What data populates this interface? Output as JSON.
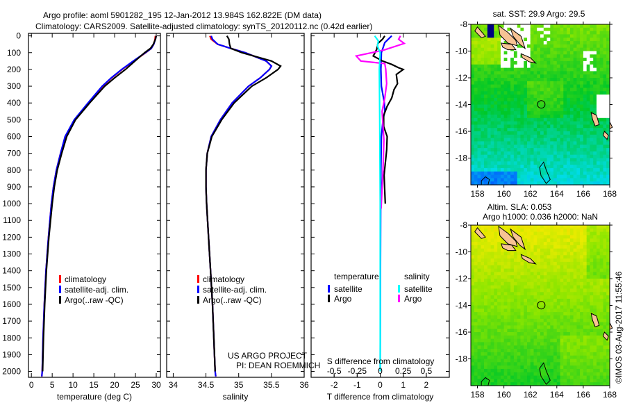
{
  "header": {
    "title_line1": "Argo profile: aoml 5901282_195 12-Jan-2012 13.984S 162.822E (DM data)",
    "title_line2": "Climatology: CARS2009. Satellite-adjusted climatology: synTS_20120112.nc (0.42d earlier)"
  },
  "footer": {
    "project": "US ARGO PROJECT",
    "pi": "PI: DEAN ROEMMICH",
    "copyright": "©IMOS 03-Aug-2017 11:55:46"
  },
  "colors": {
    "climatology": "#ff0000",
    "satellite": "#0000ff",
    "argo": "#000000",
    "sal_satellite": "#00ffff",
    "sal_argo": "#ff00ff",
    "land": "#f7c394"
  },
  "depth_axis": {
    "ticks": [
      0,
      100,
      200,
      300,
      400,
      500,
      600,
      700,
      800,
      900,
      1000,
      1100,
      1200,
      1300,
      1400,
      1500,
      1600,
      1700,
      1800,
      1900,
      2000
    ],
    "ylim": [
      -15,
      2035
    ]
  },
  "chart_data": [
    {
      "type": "line",
      "name": "temperature",
      "xlabel": "temperature (deg C)",
      "xticks": [
        0,
        5,
        10,
        15,
        20,
        25,
        30
      ],
      "xlim": [
        -0.7,
        31
      ],
      "depth": [
        0,
        20,
        50,
        75,
        100,
        150,
        200,
        250,
        300,
        400,
        500,
        600,
        700,
        800,
        900,
        1000,
        1200,
        1400,
        1600,
        1800,
        2000,
        2030
      ],
      "series": [
        {
          "name": "climatology",
          "color": "#ff0000",
          "values": [
            29.8,
            29.7,
            29.4,
            28.8,
            27.5,
            24.6,
            21.8,
            19.3,
            17.1,
            13.7,
            10.4,
            8.2,
            7.0,
            6.0,
            5.3,
            4.8,
            4.1,
            3.5,
            3.1,
            2.8,
            2.6,
            2.5
          ]
        },
        {
          "name": "satellite-adj. clim.",
          "color": "#0000ff",
          "values": [
            30.0,
            29.8,
            29.4,
            28.8,
            27.4,
            24.5,
            21.7,
            19.2,
            17.0,
            13.6,
            10.3,
            8.1,
            7.0,
            6.0,
            5.3,
            4.8,
            4.1,
            3.5,
            3.1,
            2.8,
            2.6,
            2.5
          ]
        },
        {
          "name": "Argo(..raw -QC)",
          "color": "#000000",
          "values": [
            30.0,
            29.8,
            29.3,
            28.6,
            27.2,
            24.9,
            22.6,
            20.0,
            17.6,
            14.0,
            10.6,
            8.5,
            7.3,
            6.2,
            5.5,
            5.0,
            4.2,
            3.6,
            3.2,
            2.9,
            2.7,
            null
          ]
        }
      ],
      "legend": [
        "climatology",
        "satellite-adj. clim.",
        "Argo(..raw -QC)"
      ]
    },
    {
      "type": "line",
      "name": "salinity",
      "xlabel": "salinity",
      "xticks": [
        34,
        34.5,
        35,
        35.5,
        36
      ],
      "xlim": [
        33.9,
        36.0
      ],
      "depth": [
        0,
        20,
        50,
        75,
        100,
        150,
        180,
        200,
        250,
        300,
        400,
        500,
        600,
        700,
        800,
        900,
        1000,
        1200,
        1400,
        1600,
        1800,
        2000,
        2030
      ],
      "series": [
        {
          "name": "climatology",
          "color": "#ff0000",
          "values": [
            34.56,
            34.58,
            34.68,
            34.88,
            35.1,
            35.42,
            35.5,
            35.47,
            35.33,
            35.15,
            34.9,
            34.72,
            34.58,
            34.52,
            34.5,
            34.5,
            34.51,
            34.54,
            34.57,
            34.6,
            34.62,
            34.64,
            34.65
          ]
        },
        {
          "name": "satellite-adj. clim.",
          "color": "#0000ff",
          "values": [
            34.58,
            34.6,
            34.68,
            34.88,
            35.1,
            35.42,
            35.5,
            35.47,
            35.33,
            35.15,
            34.9,
            34.72,
            34.58,
            34.52,
            34.5,
            34.5,
            34.51,
            34.54,
            34.57,
            34.6,
            34.62,
            34.64,
            34.65
          ]
        },
        {
          "name": "Argo(..raw -QC)",
          "color": "#000000",
          "values": [
            34.82,
            34.85,
            34.86,
            34.88,
            35.05,
            35.5,
            35.64,
            35.6,
            35.42,
            35.2,
            34.93,
            34.74,
            34.59,
            34.52,
            34.5,
            34.5,
            34.51,
            34.54,
            34.57,
            34.6,
            34.62,
            34.64,
            null
          ]
        }
      ],
      "legend": [
        "climatology",
        "satellite-adj. clim.",
        "Argo(..raw -QC)"
      ]
    },
    {
      "type": "line",
      "name": "difference",
      "xlabel": "T difference from climatology",
      "xticks": [
        -2,
        -1,
        0,
        1,
        2
      ],
      "xlim": [
        -3,
        3
      ],
      "x2label": "S difference from climatology",
      "x2ticks": [
        -0.5,
        -0.25,
        0,
        0.25,
        0.5
      ],
      "x2lim": [
        -0.75,
        0.75
      ],
      "legend": {
        "temperature_header": "temperature",
        "salinity_header": "salinity",
        "temperature_items": [
          {
            "label": "satellite",
            "color": "#0000ff"
          },
          {
            "label": "Argo",
            "color": "#000000"
          }
        ],
        "salinity_items": [
          {
            "label": "satellite",
            "color": "#00ffff"
          },
          {
            "label": "Argo",
            "color": "#ff00ff"
          }
        ]
      },
      "series": [
        {
          "name": "temperature satellite",
          "axis": "T",
          "color": "#0000ff",
          "depth": [
            0,
            40,
            100,
            200,
            300,
            400,
            450,
            500,
            600,
            800,
            1000,
            1500,
            2000
          ],
          "values": [
            0.5,
            0.2,
            0.05,
            0.03,
            0.05,
            0.18,
            0.2,
            0.12,
            0.05,
            0.03,
            0.02,
            0.01,
            0.0
          ]
        },
        {
          "name": "temperature Argo",
          "axis": "T",
          "color": "#000000",
          "depth": [
            0,
            20,
            45,
            80,
            120,
            150,
            170,
            190,
            200,
            230,
            285,
            320,
            370,
            420,
            475,
            540,
            600,
            680,
            830,
            1000
          ],
          "values": [
            0.2,
            0.1,
            -0.1,
            -0.15,
            -0.3,
            0.1,
            0.5,
            0.8,
            1.0,
            0.7,
            0.75,
            0.6,
            0.5,
            0.3,
            0.15,
            0.15,
            0.3,
            0.28,
            0.17,
            0.22
          ]
        },
        {
          "name": "salinity Argo",
          "axis": "S",
          "color": "#ff00ff",
          "depth": [
            0,
            20,
            45,
            85,
            120,
            150,
            165,
            200,
            285,
            370,
            450,
            620,
            800,
            1030
          ],
          "values": [
            0.22,
            0.2,
            0.26,
            0.04,
            -0.26,
            -0.21,
            0.05,
            0.06,
            0.07,
            0.05,
            0.02,
            0.04,
            0.03,
            0.01
          ]
        },
        {
          "name": "salinity satellite",
          "axis": "S",
          "color": "#00ffff",
          "depth": [
            0,
            30,
            60,
            100,
            200,
            500,
            1000,
            2000
          ],
          "values": [
            -0.06,
            -0.02,
            -0.03,
            0.0,
            -0.01,
            -0.005,
            0.0,
            0.0
          ]
        }
      ]
    },
    {
      "type": "heatmap",
      "name": "sst-map",
      "title": "sat. SST: 29.9 Argo: 29.5",
      "lon_ticks": [
        158,
        160,
        162,
        164,
        166,
        168
      ],
      "lat_ticks": [
        -8,
        -10,
        -12,
        -14,
        -16,
        -18
      ],
      "lon_range": [
        157.5,
        168
      ],
      "lat_range": [
        -20,
        -8
      ],
      "float_position": {
        "lon": 162.822,
        "lat": -13.984
      }
    },
    {
      "type": "heatmap",
      "name": "sla-map",
      "title_line1": "Altim. SLA: 0.053",
      "title_line2": "Argo h1000: 0.036 h2000: NaN",
      "lon_ticks": [
        158,
        160,
        162,
        164,
        166,
        168
      ],
      "lat_ticks": [
        -8,
        -10,
        -12,
        -14,
        -16,
        -18
      ],
      "lon_range": [
        157.5,
        168
      ],
      "lat_range": [
        -20,
        -8
      ],
      "float_position": {
        "lon": 162.822,
        "lat": -13.984
      }
    }
  ]
}
